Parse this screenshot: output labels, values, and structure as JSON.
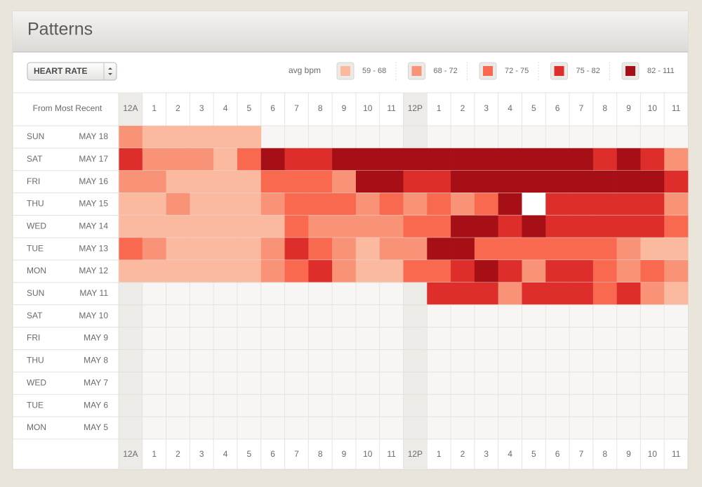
{
  "header": {
    "title": "Patterns"
  },
  "selector": {
    "label": "HEART RATE"
  },
  "legend": {
    "title": "avg bpm",
    "items": [
      {
        "label": "59 - 68",
        "color": "#fbb9a0"
      },
      {
        "label": "68 - 72",
        "color": "#f99378"
      },
      {
        "label": "72 - 75",
        "color": "#f8694f"
      },
      {
        "label": "75 - 82",
        "color": "#dd2e2b"
      },
      {
        "label": "82 - 111",
        "color": "#a50f15"
      }
    ]
  },
  "table": {
    "corner": "From Most Recent",
    "hours": [
      "12A",
      "1",
      "2",
      "3",
      "4",
      "5",
      "6",
      "7",
      "8",
      "9",
      "10",
      "11",
      "12P",
      "1",
      "2",
      "3",
      "4",
      "5",
      "6",
      "7",
      "8",
      "9",
      "10",
      "11"
    ],
    "rows": [
      {
        "day": "SUN",
        "date": "MAY 18",
        "cells": [
          "#f99378",
          "#fbb9a0",
          "#fbb9a0",
          "#fbb9a0",
          "#fbb9a0",
          "#fbb9a0",
          null,
          null,
          null,
          null,
          null,
          null,
          null,
          null,
          null,
          null,
          null,
          null,
          null,
          null,
          null,
          null,
          null,
          null
        ]
      },
      {
        "day": "SAT",
        "date": "MAY 17",
        "cells": [
          "#dd2e2b",
          "#f99378",
          "#f99378",
          "#f99378",
          "#fbb9a0",
          "#f8694f",
          "#a50f15",
          "#dd2e2b",
          "#dd2e2b",
          "#a50f15",
          "#a50f15",
          "#a50f15",
          "#a50f15",
          "#a50f15",
          "#a50f15",
          "#a50f15",
          "#a50f15",
          "#a50f15",
          "#a50f15",
          "#a50f15",
          "#dd2e2b",
          "#a50f15",
          "#dd2e2b",
          "#f99378"
        ]
      },
      {
        "day": "FRI",
        "date": "MAY 16",
        "cells": [
          "#f99378",
          "#f99378",
          "#fbb9a0",
          "#fbb9a0",
          "#fbb9a0",
          "#fbb9a0",
          "#f8694f",
          "#f8694f",
          "#f8694f",
          "#f99378",
          "#a50f15",
          "#a50f15",
          "#dd2e2b",
          "#dd2e2b",
          "#a50f15",
          "#a50f15",
          "#a50f15",
          "#a50f15",
          "#a50f15",
          "#a50f15",
          "#a50f15",
          "#a50f15",
          "#a50f15",
          "#dd2e2b"
        ]
      },
      {
        "day": "THU",
        "date": "MAY 15",
        "cells": [
          "#fbb9a0",
          "#fbb9a0",
          "#f99378",
          "#fbb9a0",
          "#fbb9a0",
          "#fbb9a0",
          "#f99378",
          "#f8694f",
          "#f8694f",
          "#f8694f",
          "#f99378",
          "#f8694f",
          "#f99378",
          "#f8694f",
          "#f99378",
          "#f8694f",
          "#a50f15",
          "#ffffff",
          "#dd2e2b",
          "#dd2e2b",
          "#dd2e2b",
          "#dd2e2b",
          "#dd2e2b",
          "#f99378"
        ]
      },
      {
        "day": "WED",
        "date": "MAY 14",
        "cells": [
          "#fbb9a0",
          "#fbb9a0",
          "#fbb9a0",
          "#fbb9a0",
          "#fbb9a0",
          "#fbb9a0",
          "#fbb9a0",
          "#f8694f",
          "#f99378",
          "#f99378",
          "#f99378",
          "#f99378",
          "#f8694f",
          "#f8694f",
          "#a50f15",
          "#a50f15",
          "#dd2e2b",
          "#a50f15",
          "#dd2e2b",
          "#dd2e2b",
          "#dd2e2b",
          "#dd2e2b",
          "#dd2e2b",
          "#f8694f"
        ]
      },
      {
        "day": "TUE",
        "date": "MAY 13",
        "cells": [
          "#f8694f",
          "#f99378",
          "#fbb9a0",
          "#fbb9a0",
          "#fbb9a0",
          "#fbb9a0",
          "#f99378",
          "#dd2e2b",
          "#f8694f",
          "#f99378",
          "#fbb9a0",
          "#f99378",
          "#f99378",
          "#a50f15",
          "#a50f15",
          "#f8694f",
          "#f8694f",
          "#f8694f",
          "#f8694f",
          "#f8694f",
          "#f8694f",
          "#f99378",
          "#fbb9a0",
          "#fbb9a0"
        ]
      },
      {
        "day": "MON",
        "date": "MAY 12",
        "cells": [
          "#fbb9a0",
          "#fbb9a0",
          "#fbb9a0",
          "#fbb9a0",
          "#fbb9a0",
          "#fbb9a0",
          "#f99378",
          "#f8694f",
          "#dd2e2b",
          "#f99378",
          "#fbb9a0",
          "#fbb9a0",
          "#f8694f",
          "#f8694f",
          "#dd2e2b",
          "#a50f15",
          "#dd2e2b",
          "#f99378",
          "#dd2e2b",
          "#dd2e2b",
          "#f8694f",
          "#f99378",
          "#f8694f",
          "#f99378"
        ]
      },
      {
        "day": "SUN",
        "date": "MAY 11",
        "cells": [
          null,
          null,
          null,
          null,
          null,
          null,
          null,
          null,
          null,
          null,
          null,
          null,
          null,
          "#dd2e2b",
          "#dd2e2b",
          "#dd2e2b",
          "#f99378",
          "#dd2e2b",
          "#dd2e2b",
          "#dd2e2b",
          "#f8694f",
          "#dd2e2b",
          "#f99378",
          "#fbb9a0"
        ]
      },
      {
        "day": "SAT",
        "date": "MAY 10",
        "cells": [
          null,
          null,
          null,
          null,
          null,
          null,
          null,
          null,
          null,
          null,
          null,
          null,
          null,
          null,
          null,
          null,
          null,
          null,
          null,
          null,
          null,
          null,
          null,
          null
        ]
      },
      {
        "day": "FRI",
        "date": "MAY 9",
        "cells": [
          null,
          null,
          null,
          null,
          null,
          null,
          null,
          null,
          null,
          null,
          null,
          null,
          null,
          null,
          null,
          null,
          null,
          null,
          null,
          null,
          null,
          null,
          null,
          null
        ]
      },
      {
        "day": "THU",
        "date": "MAY 8",
        "cells": [
          null,
          null,
          null,
          null,
          null,
          null,
          null,
          null,
          null,
          null,
          null,
          null,
          null,
          null,
          null,
          null,
          null,
          null,
          null,
          null,
          null,
          null,
          null,
          null
        ]
      },
      {
        "day": "WED",
        "date": "MAY 7",
        "cells": [
          null,
          null,
          null,
          null,
          null,
          null,
          null,
          null,
          null,
          null,
          null,
          null,
          null,
          null,
          null,
          null,
          null,
          null,
          null,
          null,
          null,
          null,
          null,
          null
        ]
      },
      {
        "day": "TUE",
        "date": "MAY 6",
        "cells": [
          null,
          null,
          null,
          null,
          null,
          null,
          null,
          null,
          null,
          null,
          null,
          null,
          null,
          null,
          null,
          null,
          null,
          null,
          null,
          null,
          null,
          null,
          null,
          null
        ]
      },
      {
        "day": "MON",
        "date": "MAY 5",
        "cells": [
          null,
          null,
          null,
          null,
          null,
          null,
          null,
          null,
          null,
          null,
          null,
          null,
          null,
          null,
          null,
          null,
          null,
          null,
          null,
          null,
          null,
          null,
          null,
          null
        ]
      }
    ]
  }
}
